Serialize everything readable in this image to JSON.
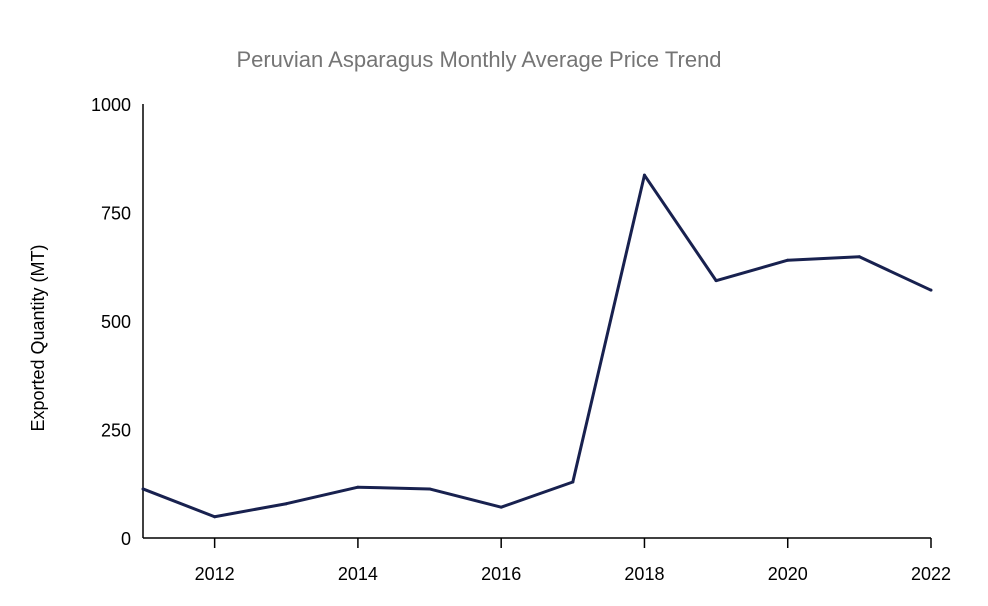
{
  "chart_data": {
    "type": "line",
    "title": "Peruvian Asparagus Monthly Average Price Trend",
    "xlabel": "",
    "ylabel": "Exported Quantity (MT)",
    "x": [
      2011,
      2012,
      2013,
      2014,
      2015,
      2016,
      2017,
      2018,
      2019,
      2020,
      2021,
      2022
    ],
    "series": [
      {
        "name": "Exported Quantity (MT)",
        "color": "#18214f",
        "values": [
          113,
          49,
          79,
          117,
          113,
          71,
          129,
          836,
          593,
          640,
          648,
          571
        ]
      }
    ],
    "xlim": [
      2011,
      2022
    ],
    "ylim": [
      0,
      1000
    ],
    "xticks": [
      "2012",
      "2014",
      "2016",
      "2018",
      "2020",
      "2022"
    ],
    "yticks": [
      "0",
      "250",
      "500",
      "750",
      "1000"
    ],
    "grid": false,
    "legend": "none"
  }
}
